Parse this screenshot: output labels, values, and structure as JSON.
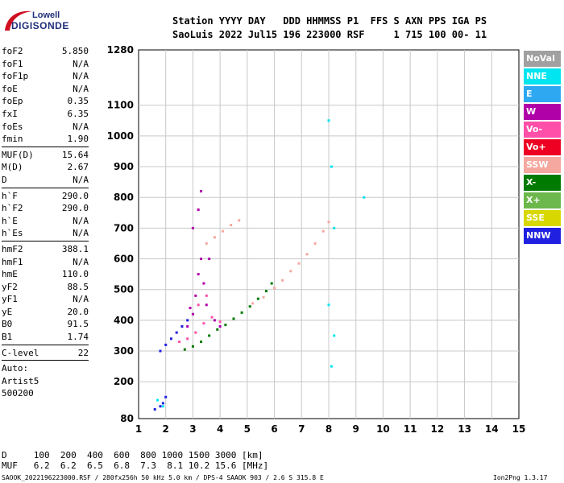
{
  "logo": {
    "line1": "Lowell",
    "line2": "DIGISONDE"
  },
  "header": {
    "line1": "Station YYYY DAY   DDD HHMMSS P1  FFS S AXN PPS IGA PS",
    "line2": "SaoLuis 2022 Jul15 196 223000 RSF     1 715 100 00- 11"
  },
  "params": [
    {
      "label": "foF2",
      "value": "5.850"
    },
    {
      "label": "foF1",
      "value": "N/A"
    },
    {
      "label": "foF1p",
      "value": "N/A"
    },
    {
      "label": "foE",
      "value": "N/A"
    },
    {
      "label": "foEp",
      "value": "0.35"
    },
    {
      "label": "fxI",
      "value": "6.35"
    },
    {
      "label": "foEs",
      "value": "N/A"
    },
    {
      "label": "fmin",
      "value": "1.90"
    },
    {
      "sep": true
    },
    {
      "label": "MUF(D)",
      "value": "15.64"
    },
    {
      "label": "M(D)",
      "value": "2.67"
    },
    {
      "label": "D",
      "value": "N/A"
    },
    {
      "sep": true
    },
    {
      "label": "h`F",
      "value": "290.0"
    },
    {
      "label": "h`F2",
      "value": "290.0"
    },
    {
      "label": "h`E",
      "value": "N/A"
    },
    {
      "label": "h`Es",
      "value": "N/A"
    },
    {
      "sep": true
    },
    {
      "label": "hmF2",
      "value": "388.1"
    },
    {
      "label": "hmF1",
      "value": "N/A"
    },
    {
      "label": "hmE",
      "value": "110.0"
    },
    {
      "label": "yF2",
      "value": "88.5"
    },
    {
      "label": "yF1",
      "value": "N/A"
    },
    {
      "label": "yE",
      "value": "20.0"
    },
    {
      "label": "B0",
      "value": "91.5"
    },
    {
      "label": "B1",
      "value": "1.74"
    },
    {
      "sep": true
    },
    {
      "label": "C-level",
      "value": "22"
    },
    {
      "sep": true
    },
    {
      "line": "Auto:"
    },
    {
      "line": "Artist5"
    },
    {
      "line": "500200"
    }
  ],
  "legend": [
    {
      "label": "NoVal",
      "color": "#a0a0a0"
    },
    {
      "label": "NNE",
      "color": "#00e5f0"
    },
    {
      "label": "E",
      "color": "#2ea8f0"
    },
    {
      "label": "W",
      "color": "#b000a8"
    },
    {
      "label": "Vo-",
      "color": "#ff4fa8"
    },
    {
      "label": "Vo+",
      "color": "#ee0022"
    },
    {
      "label": "SSW",
      "color": "#f4a8a0"
    },
    {
      "label": "X-",
      "color": "#007a00"
    },
    {
      "label": "X+",
      "color": "#6cb84c"
    },
    {
      "label": "SSE",
      "color": "#d8d800"
    },
    {
      "label": "NNW",
      "color": "#2020e0"
    }
  ],
  "footer": {
    "d_row": "D     100  200  400  600  800 1000 1500 3000 [km]",
    "muf_row": "MUF   6.2  6.2  6.5  6.8  7.3  8.1 10.2 15.6 [MHz]",
    "file": "SAOOK_2022196223000.RSF / 280fx256h 50 kHz 5.0 km / DPS-4 SAAOK 903 / 2.6 S 315.8 E",
    "version": "Ion2Png 1.3.17"
  },
  "chart_data": {
    "type": "scatter",
    "xlim": [
      1,
      15
    ],
    "ylim": [
      80,
      1280
    ],
    "x_ticks": [
      1,
      2,
      3,
      4,
      5,
      6,
      7,
      8,
      9,
      10,
      11,
      12,
      13,
      14,
      15
    ],
    "y_ticks": [
      80,
      200,
      300,
      400,
      500,
      600,
      700,
      800,
      900,
      1000,
      1100,
      1280
    ],
    "grid": true,
    "series": [
      {
        "name": "X-",
        "color": "#007a00",
        "points": [
          [
            2.7,
            305
          ],
          [
            3.0,
            315
          ],
          [
            3.3,
            330
          ],
          [
            3.6,
            350
          ],
          [
            3.9,
            370
          ],
          [
            4.2,
            385
          ],
          [
            4.5,
            405
          ],
          [
            4.8,
            425
          ],
          [
            5.1,
            445
          ],
          [
            5.4,
            470
          ],
          [
            5.7,
            495
          ],
          [
            5.9,
            520
          ]
        ]
      },
      {
        "name": "SSW",
        "color": "#f4a8a0",
        "points": [
          [
            5.2,
            455
          ],
          [
            5.6,
            475
          ],
          [
            6.0,
            505
          ],
          [
            6.3,
            530
          ],
          [
            6.6,
            560
          ],
          [
            6.9,
            585
          ],
          [
            7.2,
            615
          ],
          [
            7.5,
            650
          ],
          [
            7.8,
            690
          ],
          [
            8.0,
            720
          ],
          [
            3.5,
            650
          ],
          [
            3.8,
            670
          ],
          [
            4.1,
            690
          ],
          [
            4.4,
            710
          ],
          [
            4.7,
            725
          ]
        ]
      },
      {
        "name": "W",
        "color": "#b000a8",
        "points": [
          [
            3.0,
            420
          ],
          [
            3.1,
            480
          ],
          [
            3.2,
            550
          ],
          [
            3.3,
            600
          ],
          [
            3.0,
            700
          ],
          [
            3.2,
            760
          ],
          [
            3.4,
            520
          ],
          [
            3.5,
            450
          ],
          [
            3.6,
            600
          ],
          [
            2.8,
            380
          ],
          [
            2.9,
            440
          ],
          [
            3.3,
            820
          ],
          [
            3.8,
            400
          ],
          [
            4.0,
            380
          ]
        ]
      },
      {
        "name": "Vo-",
        "color": "#ff4fa8",
        "points": [
          [
            2.5,
            330
          ],
          [
            2.8,
            340
          ],
          [
            3.1,
            360
          ],
          [
            3.4,
            390
          ],
          [
            3.7,
            410
          ],
          [
            4.0,
            395
          ],
          [
            3.2,
            450
          ],
          [
            3.5,
            480
          ]
        ]
      },
      {
        "name": "NNW",
        "color": "#2020e0",
        "points": [
          [
            2.0,
            320
          ],
          [
            2.2,
            340
          ],
          [
            2.4,
            360
          ],
          [
            2.6,
            380
          ],
          [
            2.8,
            400
          ],
          [
            1.8,
            300
          ],
          [
            1.6,
            110
          ],
          [
            1.8,
            120
          ],
          [
            1.9,
            130
          ],
          [
            2.0,
            150
          ]
        ]
      },
      {
        "name": "NNE",
        "color": "#00e5f0",
        "points": [
          [
            8.0,
            1050
          ],
          [
            8.1,
            900
          ],
          [
            8.2,
            700
          ],
          [
            8.0,
            450
          ],
          [
            8.2,
            350
          ],
          [
            8.1,
            250
          ],
          [
            9.3,
            800
          ],
          [
            1.7,
            140
          ],
          [
            1.9,
            120
          ]
        ]
      }
    ]
  }
}
